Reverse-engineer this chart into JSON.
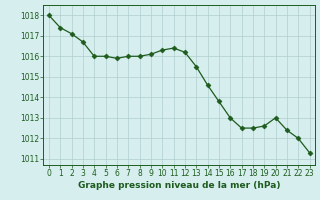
{
  "x": [
    0,
    1,
    2,
    3,
    4,
    5,
    6,
    7,
    8,
    9,
    10,
    11,
    12,
    13,
    14,
    15,
    16,
    17,
    18,
    19,
    20,
    21,
    22,
    23
  ],
  "y": [
    1018.0,
    1017.4,
    1017.1,
    1016.7,
    1016.0,
    1016.0,
    1015.9,
    1016.0,
    1016.0,
    1016.1,
    1016.3,
    1016.4,
    1016.2,
    1015.5,
    1014.6,
    1013.8,
    1013.0,
    1012.5,
    1012.5,
    1012.6,
    1013.0,
    1012.4,
    1012.0,
    1011.3
  ],
  "line_color": "#1e5c1e",
  "marker": "D",
  "marker_size": 2.5,
  "bg_color": "#d6eeee",
  "grid_color": "#b0cece",
  "xlabel": "Graphe pression niveau de la mer (hPa)",
  "xlabel_color": "#1e5c1e",
  "ylabel_ticks": [
    1011,
    1012,
    1013,
    1014,
    1015,
    1016,
    1017,
    1018
  ],
  "xlabel_ticks": [
    0,
    1,
    2,
    3,
    4,
    5,
    6,
    7,
    8,
    9,
    10,
    11,
    12,
    13,
    14,
    15,
    16,
    17,
    18,
    19,
    20,
    21,
    22,
    23
  ],
  "ylim": [
    1010.7,
    1018.5
  ],
  "xlim": [
    -0.5,
    23.5
  ],
  "tick_fontsize": 5.5,
  "xlabel_fontsize": 6.5
}
